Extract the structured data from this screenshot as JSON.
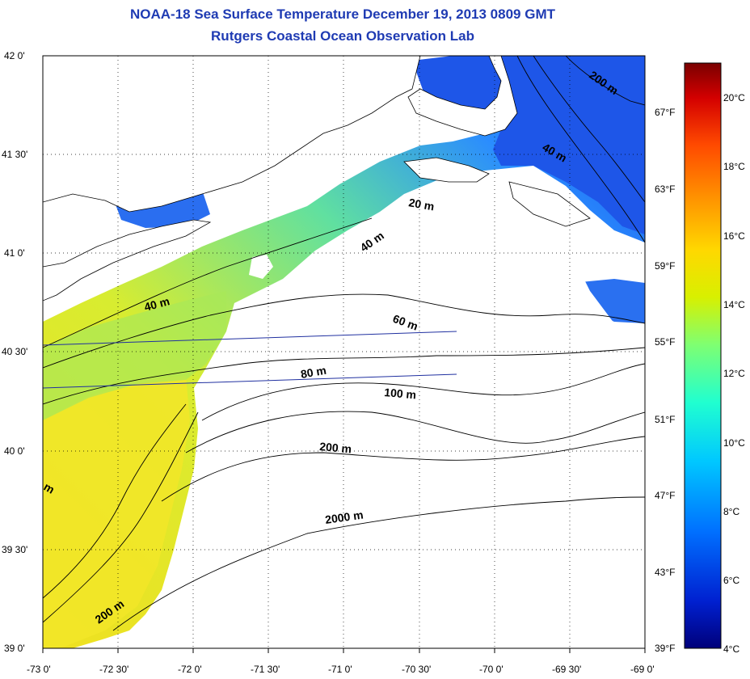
{
  "header": {
    "title": "NOAA-18 Sea Surface Temperature December 19, 2013 0809 GMT",
    "subtitle": "Rutgers Coastal Ocean Observation Lab"
  },
  "map": {
    "lat_range": [
      39.0,
      42.0
    ],
    "lon_range": [
      -73.0,
      -69.0
    ],
    "lat_labels": [
      "42 0'",
      "41 30'",
      "41 0'",
      "40 30'",
      "40 0'",
      "39 30'",
      "39 0'"
    ],
    "lon_labels": [
      "-73 0'",
      "-72 30'",
      "-72 0'",
      "-71 30'",
      "-71 0'",
      "-70 30'",
      "-70 0'",
      "-69 30'",
      "-69 0'"
    ],
    "fahrenheit_labels": [
      "67°F",
      "63°F",
      "59°F",
      "55°F",
      "51°F",
      "47°F",
      "43°F",
      "39°F"
    ],
    "depth_labels": [
      "200 m",
      "40 m",
      "20 m",
      "40 m",
      "40 m",
      "60 m",
      "80 m",
      "100 m",
      "200 m",
      "2000 m",
      "200 m",
      "m"
    ],
    "grid": true
  },
  "colorbar": {
    "celsius_labels": [
      "20°C",
      "18°C",
      "16°C",
      "14°C",
      "12°C",
      "10°C",
      "8°C",
      "6°C",
      "4°C"
    ],
    "colors": [
      "#7a0000",
      "#d40000",
      "#ff4a00",
      "#ff9a00",
      "#ffd800",
      "#d8f000",
      "#80ff70",
      "#20ffd0",
      "#00c8ff",
      "#0070ff",
      "#0020d0",
      "#00007a"
    ]
  }
}
